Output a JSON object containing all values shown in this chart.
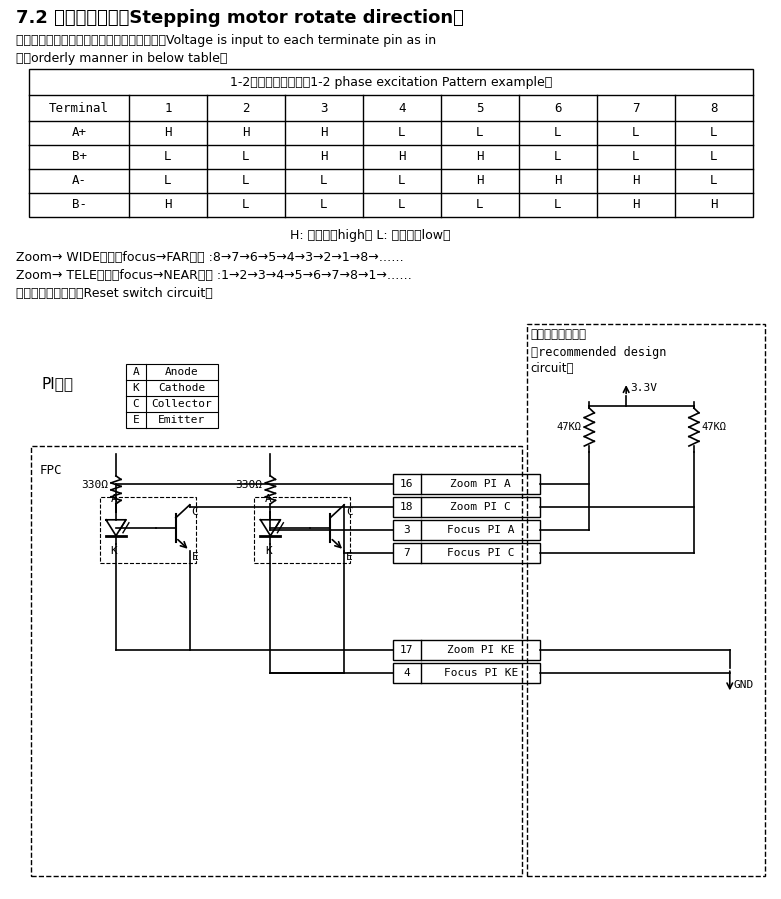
{
  "title_bold": "7.2 ",
  "title_cn": "步进电机转向",
  "title_en": "（Stepping motor rotate direction）",
  "subtitle1": "　　电压输入到每个端子的顺序方式见下表（Voltage is input to each terminate pin as in",
  "subtitle2": "　　orderly manner in below table）",
  "table_header": "1-2相励磁模式示例（1-2 phase excitation Pattern example）",
  "col_headers": [
    "Terminal",
    "1",
    "2",
    "3",
    "4",
    "5",
    "6",
    "7",
    "8"
  ],
  "row_labels": [
    "A+",
    "B+",
    "A-",
    "B-"
  ],
  "table_data": [
    [
      "H",
      "H",
      "H",
      "L",
      "L",
      "L",
      "L",
      "L"
    ],
    [
      "L",
      "L",
      "H",
      "H",
      "H",
      "L",
      "L",
      "L"
    ],
    [
      "L",
      "L",
      "L",
      "L",
      "H",
      "H",
      "H",
      "L"
    ],
    [
      "H",
      "L",
      "L",
      "L",
      "L",
      "L",
      "H",
      "H"
    ]
  ],
  "hl_note": "H: 高电位（high） L: 低电位（low）",
  "zoom_wide": "Zoom→ WIDE方向，focus→FAR方向 :8→7→6→5→4→3→2→1→8→……",
  "zoom_tele": "Zoom→ TELE方向，focus→NEAR方向 :1→2→3→4→5→6→7→8→1→……",
  "reset": "　　复位开关电路（Reset switch circuit）",
  "pi_label": "PI回路",
  "pi_table": [
    [
      "A",
      "Anode"
    ],
    [
      "K",
      "Cathode"
    ],
    [
      "C",
      "Collector"
    ],
    [
      "E",
      "Emitter"
    ]
  ],
  "fpc_label": "FPC",
  "recommended_line1": "推荐基板设计回路",
  "recommended_line2": "（recommended design",
  "recommended_line3": "circuit）",
  "connectors_left": [
    [
      "16",
      "Zoom PI A"
    ],
    [
      "18",
      "Zoom PI C"
    ],
    [
      "3",
      "Focus PI A"
    ],
    [
      "7",
      "Focus PI C"
    ]
  ],
  "connectors_bottom": [
    [
      "17",
      "Zoom PI KE"
    ],
    [
      "4",
      "Focus PI KE"
    ]
  ],
  "resistors_fpc": [
    "330Ω",
    "330Ω"
  ],
  "resistors_rec": [
    "47KΩ",
    "47KΩ"
  ],
  "voltage_label": "3.3V",
  "gnd_label": "GND",
  "bg_color": "#ffffff",
  "text_color": "#000000",
  "line_color": "#000000"
}
